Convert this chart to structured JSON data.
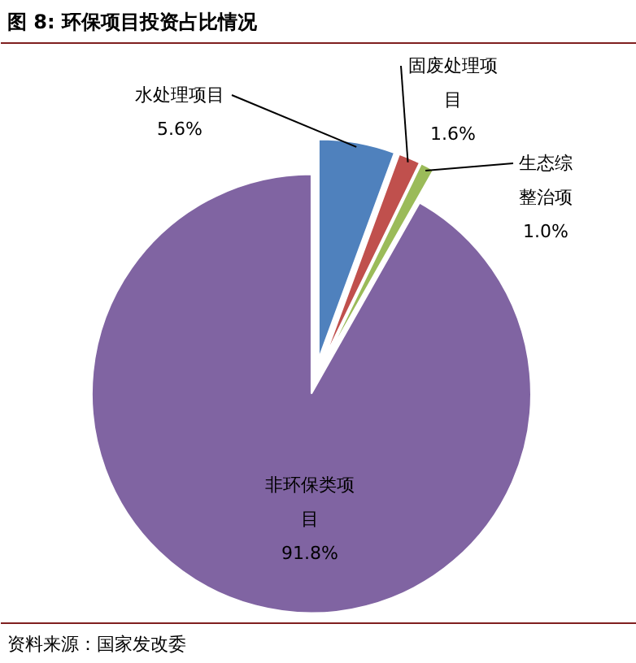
{
  "chart_data": {
    "type": "pie",
    "title": "图 8:  环保项目投资占比情况",
    "categories": [
      "水处理项目",
      "固废处理项目",
      "生态综整治项",
      "非环保类项目"
    ],
    "values": [
      5.6,
      1.6,
      1.0,
      91.8
    ],
    "colors": [
      "#4f81bd",
      "#c0504d",
      "#9bbb59",
      "#8064a2"
    ],
    "value_labels": [
      "5.6%",
      "1.6%",
      "1.0%",
      "91.8%"
    ],
    "annotations": [
      "资料来源：国家发改委"
    ]
  }
}
